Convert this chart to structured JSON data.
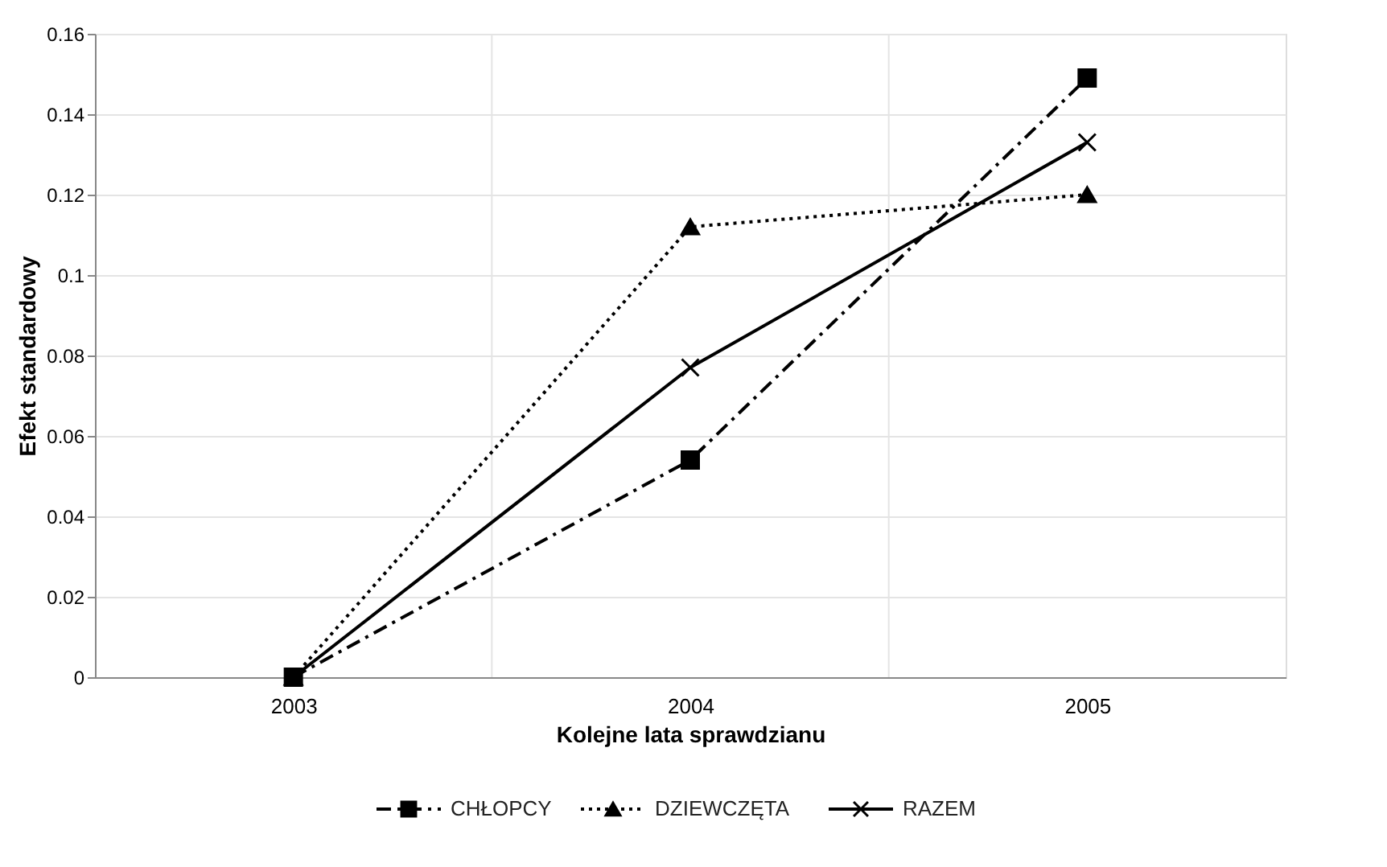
{
  "chart_data": {
    "type": "line",
    "xlabel": "Kolejne lata sprawdzianu",
    "ylabel": "Efekt standardowy",
    "categories": [
      "2003",
      "2004",
      "2005"
    ],
    "series": [
      {
        "name": "CHŁOPCY",
        "color": "#000000",
        "values": [
          0,
          0.054,
          0.149
        ],
        "marker": "square",
        "line_style": "dashed"
      },
      {
        "name": "DZIEWCZĘTA",
        "color": "#000000",
        "values": [
          0,
          0.112,
          0.12
        ],
        "marker": "triangle",
        "line_style": "dotted"
      },
      {
        "name": "RAZEM",
        "color": "#000000",
        "values": [
          0,
          0.077,
          0.133
        ],
        "marker": "cross",
        "line_style": "solid"
      }
    ],
    "ylim": [
      0,
      0.16
    ],
    "yticks": [
      0,
      0.02,
      0.04,
      0.06,
      0.08,
      0.1,
      0.12,
      0.14,
      0.16
    ],
    "grid": true,
    "legend": "bottom"
  }
}
